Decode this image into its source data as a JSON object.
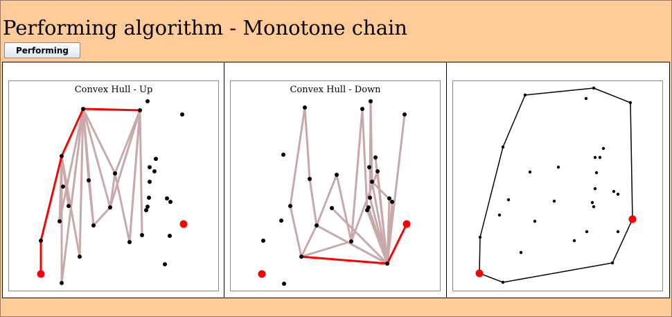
{
  "window": {
    "title": "Performing algorithm - Monotone chain"
  },
  "toolbar": {
    "performing_label": "Performing"
  },
  "panels": [
    {
      "title": "Convex Hull - Up",
      "points": [
        [
          46,
          278
        ],
        [
          46,
          230
        ],
        [
          76,
          108
        ],
        [
          107,
          40
        ],
        [
          189,
          42
        ],
        [
          200,
          29
        ],
        [
          250,
          48
        ],
        [
          252,
          206
        ],
        [
          76,
          291
        ],
        [
          78,
          152
        ],
        [
          73,
          202
        ],
        [
          86,
          180
        ],
        [
          102,
          253
        ],
        [
          115,
          143
        ],
        [
          122,
          208
        ],
        [
          146,
          182
        ],
        [
          153,
          133
        ],
        [
          174,
          232
        ],
        [
          192,
          222
        ],
        [
          212,
          112
        ],
        [
          203,
          124
        ],
        [
          210,
          130
        ],
        [
          203,
          145
        ],
        [
          202,
          168
        ],
        [
          198,
          186
        ],
        [
          200,
          181
        ],
        [
          228,
          169
        ],
        [
          233,
          174
        ],
        [
          232,
          223
        ],
        [
          225,
          264
        ]
      ],
      "highlight": [
        0,
        7
      ],
      "chain": [
        [
          46,
          278
        ],
        [
          46,
          230
        ],
        [
          76,
          108
        ],
        [
          107,
          40
        ],
        [
          189,
          42
        ]
      ],
      "scan_edges": [
        [
          [
            107,
            40
          ],
          [
            76,
            291
          ]
        ],
        [
          [
            107,
            40
          ],
          [
            73,
            202
          ]
        ],
        [
          [
            107,
            40
          ],
          [
            102,
            253
          ]
        ],
        [
          [
            107,
            40
          ],
          [
            115,
            143
          ]
        ],
        [
          [
            107,
            40
          ],
          [
            122,
            208
          ]
        ],
        [
          [
            107,
            40
          ],
          [
            146,
            182
          ]
        ],
        [
          [
            107,
            40
          ],
          [
            153,
            133
          ]
        ],
        [
          [
            189,
            42
          ],
          [
            153,
            133
          ]
        ],
        [
          [
            189,
            42
          ],
          [
            146,
            182
          ]
        ],
        [
          [
            189,
            42
          ],
          [
            174,
            232
          ]
        ],
        [
          [
            189,
            42
          ],
          [
            192,
            222
          ]
        ],
        [
          [
            76,
            108
          ],
          [
            76,
            291
          ]
        ],
        [
          [
            76,
            108
          ],
          [
            86,
            180
          ]
        ],
        [
          [
            76,
            108
          ],
          [
            102,
            253
          ]
        ],
        [
          [
            76,
            108
          ],
          [
            73,
            202
          ]
        ],
        [
          [
            115,
            143
          ],
          [
            122,
            208
          ]
        ],
        [
          [
            122,
            208
          ],
          [
            146,
            182
          ]
        ],
        [
          [
            146,
            182
          ],
          [
            153,
            133
          ]
        ],
        [
          [
            153,
            133
          ],
          [
            174,
            232
          ]
        ],
        [
          [
            174,
            232
          ],
          [
            189,
            42
          ]
        ]
      ]
    },
    {
      "title": "Convex Hull - Down",
      "points": [
        [
          45,
          278
        ],
        [
          254,
          206
        ],
        [
          77,
          292
        ],
        [
          76,
          106
        ],
        [
          86,
          180
        ],
        [
          73,
          201
        ],
        [
          47,
          230
        ],
        [
          107,
          38
        ],
        [
          114,
          141
        ],
        [
          124,
          208
        ],
        [
          146,
          183
        ],
        [
          153,
          135
        ],
        [
          174,
          231
        ],
        [
          190,
          40
        ],
        [
          202,
          29
        ],
        [
          251,
          48
        ],
        [
          226,
          263
        ],
        [
          102,
          253
        ],
        [
          209,
          110
        ],
        [
          200,
          124
        ],
        [
          212,
          130
        ],
        [
          204,
          145
        ],
        [
          201,
          168
        ],
        [
          197,
          186
        ],
        [
          199,
          182
        ],
        [
          229,
          169
        ],
        [
          233,
          174
        ]
      ],
      "highlight": [
        0,
        1
      ],
      "chain": [
        [
          102,
          253
        ],
        [
          226,
          263
        ],
        [
          254,
          206
        ]
      ],
      "scan_edges": [
        [
          [
            102,
            253
          ],
          [
            86,
            180
          ]
        ],
        [
          [
            86,
            180
          ],
          [
            107,
            38
          ]
        ],
        [
          [
            107,
            38
          ],
          [
            114,
            141
          ]
        ],
        [
          [
            114,
            141
          ],
          [
            124,
            208
          ]
        ],
        [
          [
            124,
            208
          ],
          [
            153,
            135
          ]
        ],
        [
          [
            153,
            135
          ],
          [
            174,
            231
          ]
        ],
        [
          [
            174,
            231
          ],
          [
            190,
            40
          ]
        ],
        [
          [
            190,
            40
          ],
          [
            197,
            186
          ]
        ],
        [
          [
            202,
            29
          ],
          [
            204,
            145
          ]
        ],
        [
          [
            202,
            29
          ],
          [
            201,
            168
          ]
        ],
        [
          [
            209,
            110
          ],
          [
            226,
            263
          ]
        ],
        [
          [
            212,
            130
          ],
          [
            226,
            263
          ]
        ],
        [
          [
            200,
            124
          ],
          [
            226,
            263
          ]
        ],
        [
          [
            199,
            182
          ],
          [
            226,
            263
          ]
        ],
        [
          [
            201,
            168
          ],
          [
            226,
            263
          ]
        ],
        [
          [
            197,
            186
          ],
          [
            226,
            263
          ]
        ],
        [
          [
            229,
            169
          ],
          [
            226,
            263
          ]
        ],
        [
          [
            233,
            174
          ],
          [
            226,
            263
          ]
        ],
        [
          [
            251,
            48
          ],
          [
            226,
            263
          ]
        ],
        [
          [
            124,
            208
          ],
          [
            226,
            263
          ]
        ],
        [
          [
            146,
            183
          ],
          [
            226,
            263
          ]
        ],
        [
          [
            102,
            253
          ],
          [
            124,
            208
          ]
        ],
        [
          [
            102,
            253
          ],
          [
            174,
            231
          ]
        ],
        [
          [
            233,
            174
          ],
          [
            204,
            145
          ]
        ],
        [
          [
            174,
            231
          ],
          [
            212,
            130
          ]
        ]
      ]
    },
    {
      "title": "",
      "points": [
        [
          38,
          277
        ],
        [
          39,
          225
        ],
        [
          72,
          95
        ],
        [
          104,
          20
        ],
        [
          203,
          10
        ],
        [
          256,
          31
        ],
        [
          259,
          199
        ],
        [
          230,
          262
        ],
        [
          72,
          290
        ],
        [
          80,
          171
        ],
        [
          67,
          193
        ],
        [
          111,
          131
        ],
        [
          98,
          247
        ],
        [
          118,
          202
        ],
        [
          152,
          124
        ],
        [
          146,
          173
        ],
        [
          175,
          230
        ],
        [
          193,
          217
        ],
        [
          192,
          25
        ],
        [
          217,
          97
        ],
        [
          205,
          110
        ],
        [
          212,
          110
        ],
        [
          207,
          132
        ],
        [
          205,
          155
        ],
        [
          201,
          175
        ],
        [
          203,
          181
        ],
        [
          232,
          159
        ],
        [
          238,
          163
        ],
        [
          238,
          217
        ]
      ],
      "highlight": [
        0,
        6
      ],
      "hull": [
        [
          38,
          277
        ],
        [
          72,
          290
        ],
        [
          230,
          262
        ],
        [
          259,
          199
        ],
        [
          256,
          31
        ],
        [
          203,
          10
        ],
        [
          104,
          20
        ],
        [
          72,
          95
        ],
        [
          39,
          225
        ],
        [
          38,
          277
        ]
      ]
    }
  ],
  "colors": {
    "background": "#ffcc99",
    "hull_edge": "#ff0000",
    "scan_edge": "#c8a8a8",
    "point": "#000000",
    "highlight": "#ff0000"
  }
}
